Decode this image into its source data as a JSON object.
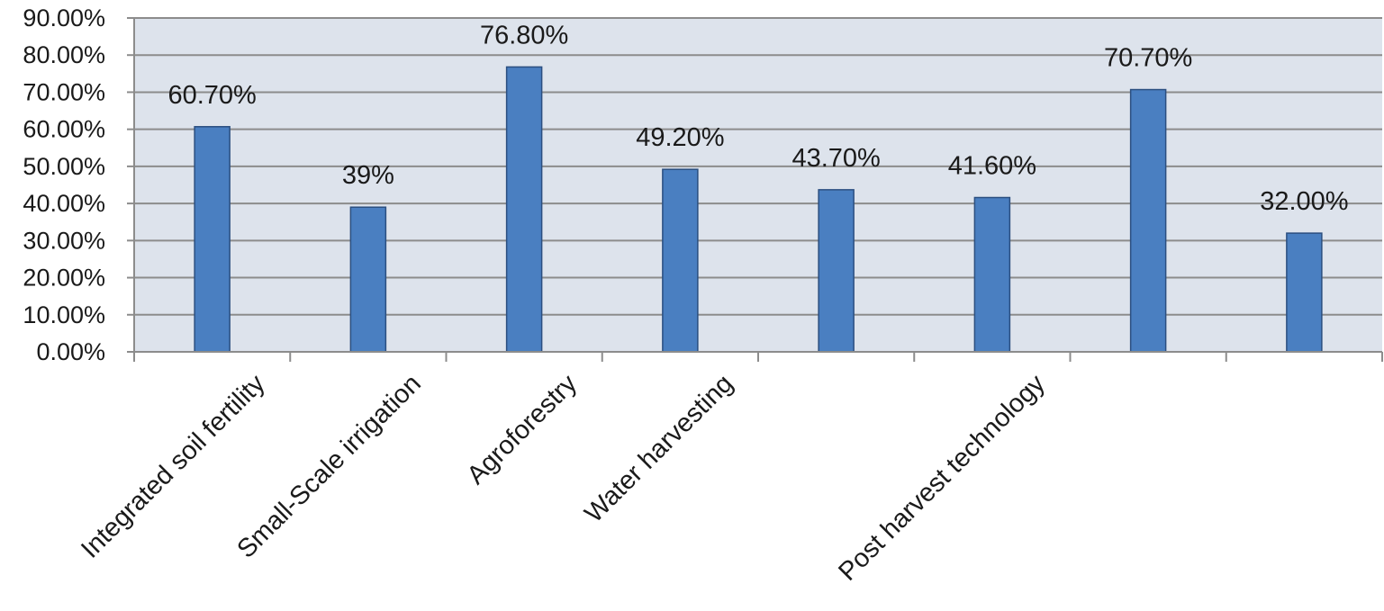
{
  "chart_data": {
    "type": "bar",
    "title": "",
    "xlabel": "",
    "ylabel": "",
    "ylim": [
      0,
      0.9
    ],
    "yticks": [
      "0.00%",
      "10.00%",
      "20.00%",
      "30.00%",
      "40.00%",
      "50.00%",
      "60.00%",
      "70.00%",
      "80.00%",
      "90.00%"
    ],
    "categories": [
      "Integrated soil fertility",
      "Small-Scale irrigation",
      "Agroforestry",
      "Water harvesting",
      "",
      "Post harvest technology",
      "",
      ""
    ],
    "values": [
      0.607,
      0.39,
      0.768,
      0.492,
      0.437,
      0.416,
      0.707,
      0.32
    ],
    "data_labels": [
      "60.70%",
      "39%",
      "76.80%",
      "49.20%",
      "43.70%",
      "41.60%",
      "70.70%",
      "32.00%"
    ],
    "grid": true,
    "legend": "none",
    "colors": {
      "bar": "#4a7fc1",
      "bar_stroke": "#2b4f80",
      "plot_bg": "#dde3ec",
      "grid": "#8c8c8c",
      "axis": "#8c8c8c"
    }
  }
}
